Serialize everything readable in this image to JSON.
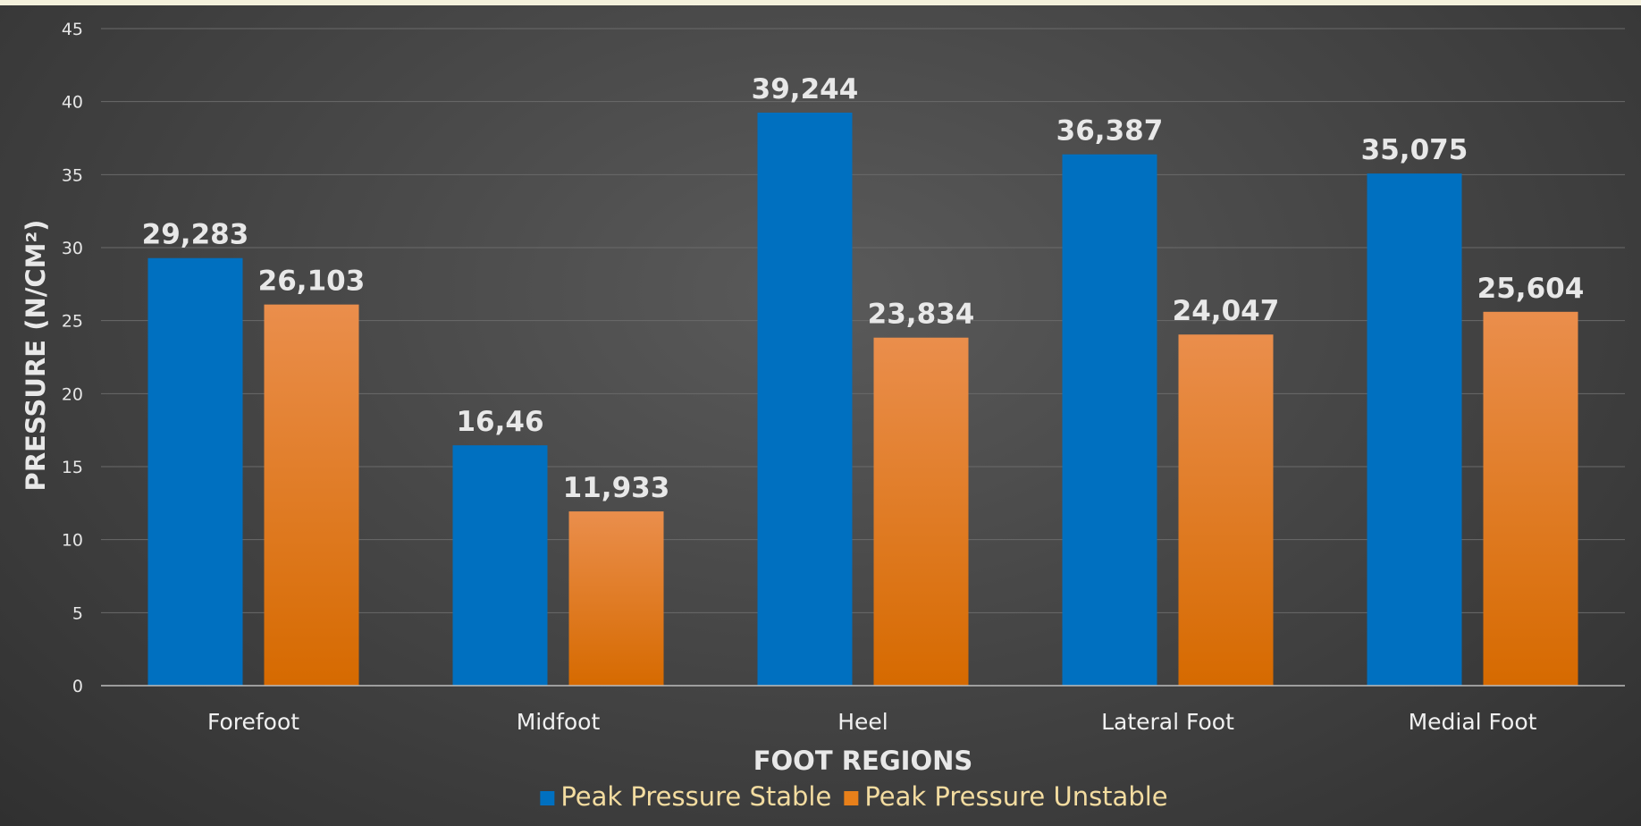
{
  "chart_data": {
    "type": "bar",
    "title": "",
    "xlabel": "FOOT REGIONS",
    "ylabel": "PRESSURE (N/CM²)",
    "ylim": [
      0,
      45
    ],
    "ytick_step": 5,
    "categories": [
      "Forefoot",
      "Midfoot",
      "Heel",
      "Lateral Foot",
      "Medial Foot"
    ],
    "series": [
      {
        "name": "Peak Pressure Stable",
        "color": "#0070c0",
        "values": [
          29.283,
          16.46,
          39.244,
          36.387,
          35.075
        ],
        "labels": [
          "29,283",
          "16,46",
          "39,244",
          "36,387",
          "35,075"
        ]
      },
      {
        "name": "Peak Pressure Unstable",
        "color": "#e8801a",
        "values": [
          26.103,
          11.933,
          23.834,
          24.047,
          25.604
        ],
        "labels": [
          "26,103",
          "11,933",
          "23,834",
          "24,047",
          "25,604"
        ]
      }
    ],
    "grid": true,
    "legend": "bottom"
  }
}
